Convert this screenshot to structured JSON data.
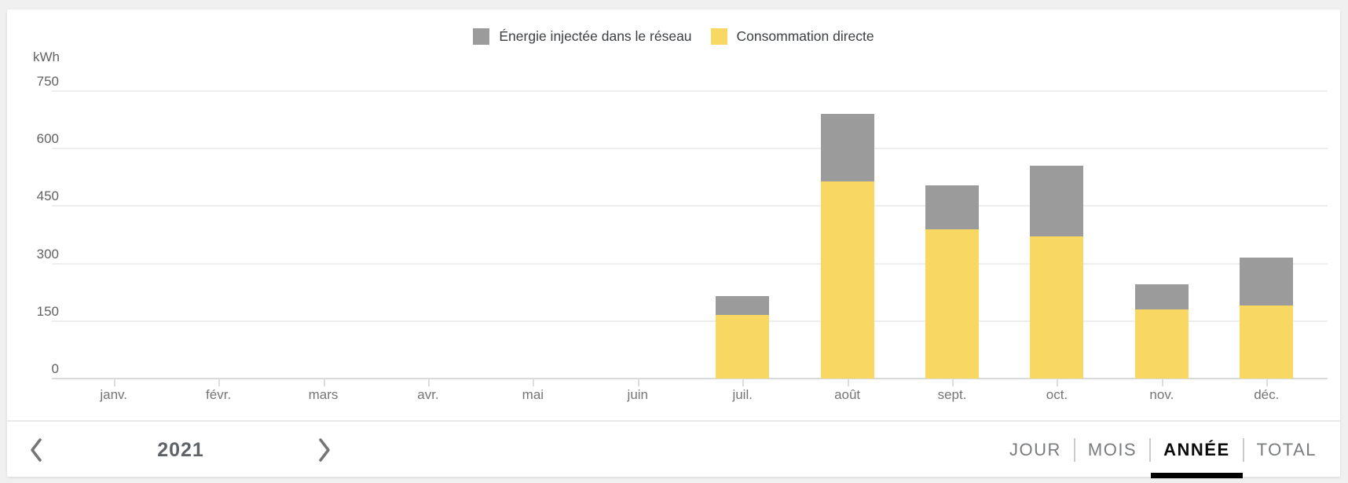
{
  "unit_label": "kWh",
  "legend": {
    "items": [
      {
        "label": "Énergie injectée dans le réseau",
        "color": "#9b9b9b",
        "icon": "gray-square-swatch"
      },
      {
        "label": "Consommation directe",
        "color": "#f8d763",
        "icon": "yellow-square-swatch"
      }
    ]
  },
  "chart_data": {
    "type": "bar",
    "stacked": true,
    "title": "",
    "xlabel": "",
    "ylabel": "kWh",
    "ylim": [
      0,
      750
    ],
    "yticks": [
      0,
      150,
      300,
      450,
      600,
      750
    ],
    "grid": true,
    "legend_position": "top-center",
    "categories": [
      "janv.",
      "févr.",
      "mars",
      "avr.",
      "mai",
      "juin",
      "juil.",
      "août",
      "sept.",
      "oct.",
      "nov.",
      "déc."
    ],
    "series": [
      {
        "name": "Énergie injectée dans le réseau",
        "color": "#9b9b9b",
        "stack_order": "top",
        "values": [
          0,
          0,
          0,
          0,
          0,
          0,
          50,
          175,
          115,
          185,
          65,
          125
        ]
      },
      {
        "name": "Consommation directe",
        "color": "#f8d763",
        "stack_order": "bottom",
        "values": [
          0,
          0,
          0,
          0,
          0,
          0,
          165,
          515,
          390,
          370,
          180,
          190
        ]
      }
    ]
  },
  "footer": {
    "year": "2021",
    "prev_icon": "chevron-left",
    "next_icon": "chevron-right",
    "tabs": [
      {
        "label": "JOUR",
        "active": false
      },
      {
        "label": "MOIS",
        "active": false
      },
      {
        "label": "ANNÉE",
        "active": true
      },
      {
        "label": "TOTAL",
        "active": false
      }
    ]
  },
  "colors": {
    "page_background": "#f0f0f0",
    "card_background": "#ffffff",
    "gridline": "#edefee",
    "axis_baseline": "#d8dad9",
    "axis_text": "#616161",
    "month_text": "#757575",
    "legend_text": "#3d4043",
    "bar_yellow": "#f8d763",
    "bar_gray": "#9b9b9b",
    "tab_inactive": "#797c7e",
    "tab_active": "#0a0a0a",
    "tab_indicator": "#000000",
    "chevron": "#757575"
  }
}
